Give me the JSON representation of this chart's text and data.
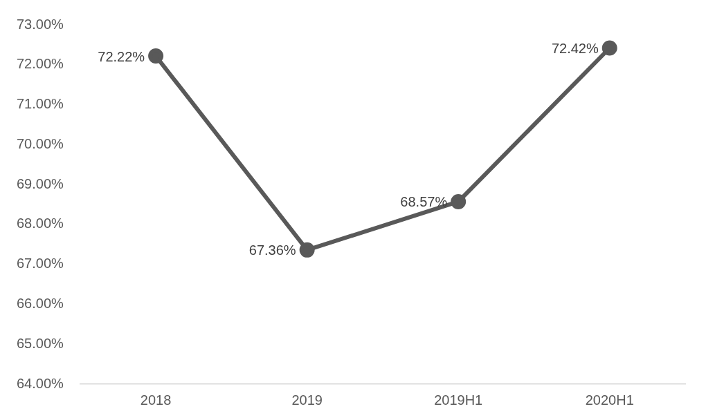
{
  "chart_data": {
    "type": "line",
    "categories": [
      "2018",
      "2019",
      "2019H1",
      "2020H1"
    ],
    "values": [
      72.22,
      67.36,
      68.57,
      72.42
    ],
    "value_labels": [
      "72.22%",
      "67.36%",
      "68.57%",
      "72.42%"
    ],
    "color": "#595959",
    "marker": "circle",
    "line_style": "solid",
    "grid": false,
    "legend": false,
    "ylim": [
      64,
      73
    ],
    "yticks": [
      {
        "value": 64,
        "label": "64.00%"
      },
      {
        "value": 65,
        "label": "65.00%"
      },
      {
        "value": 66,
        "label": "66.00%"
      },
      {
        "value": 67,
        "label": "67.00%"
      },
      {
        "value": 68,
        "label": "68.00%"
      },
      {
        "value": 69,
        "label": "69.00%"
      },
      {
        "value": 70,
        "label": "70.00%"
      },
      {
        "value": 71,
        "label": "71.00%"
      },
      {
        "value": 72,
        "label": "72.00%"
      },
      {
        "value": 73,
        "label": "73.00%"
      }
    ]
  }
}
